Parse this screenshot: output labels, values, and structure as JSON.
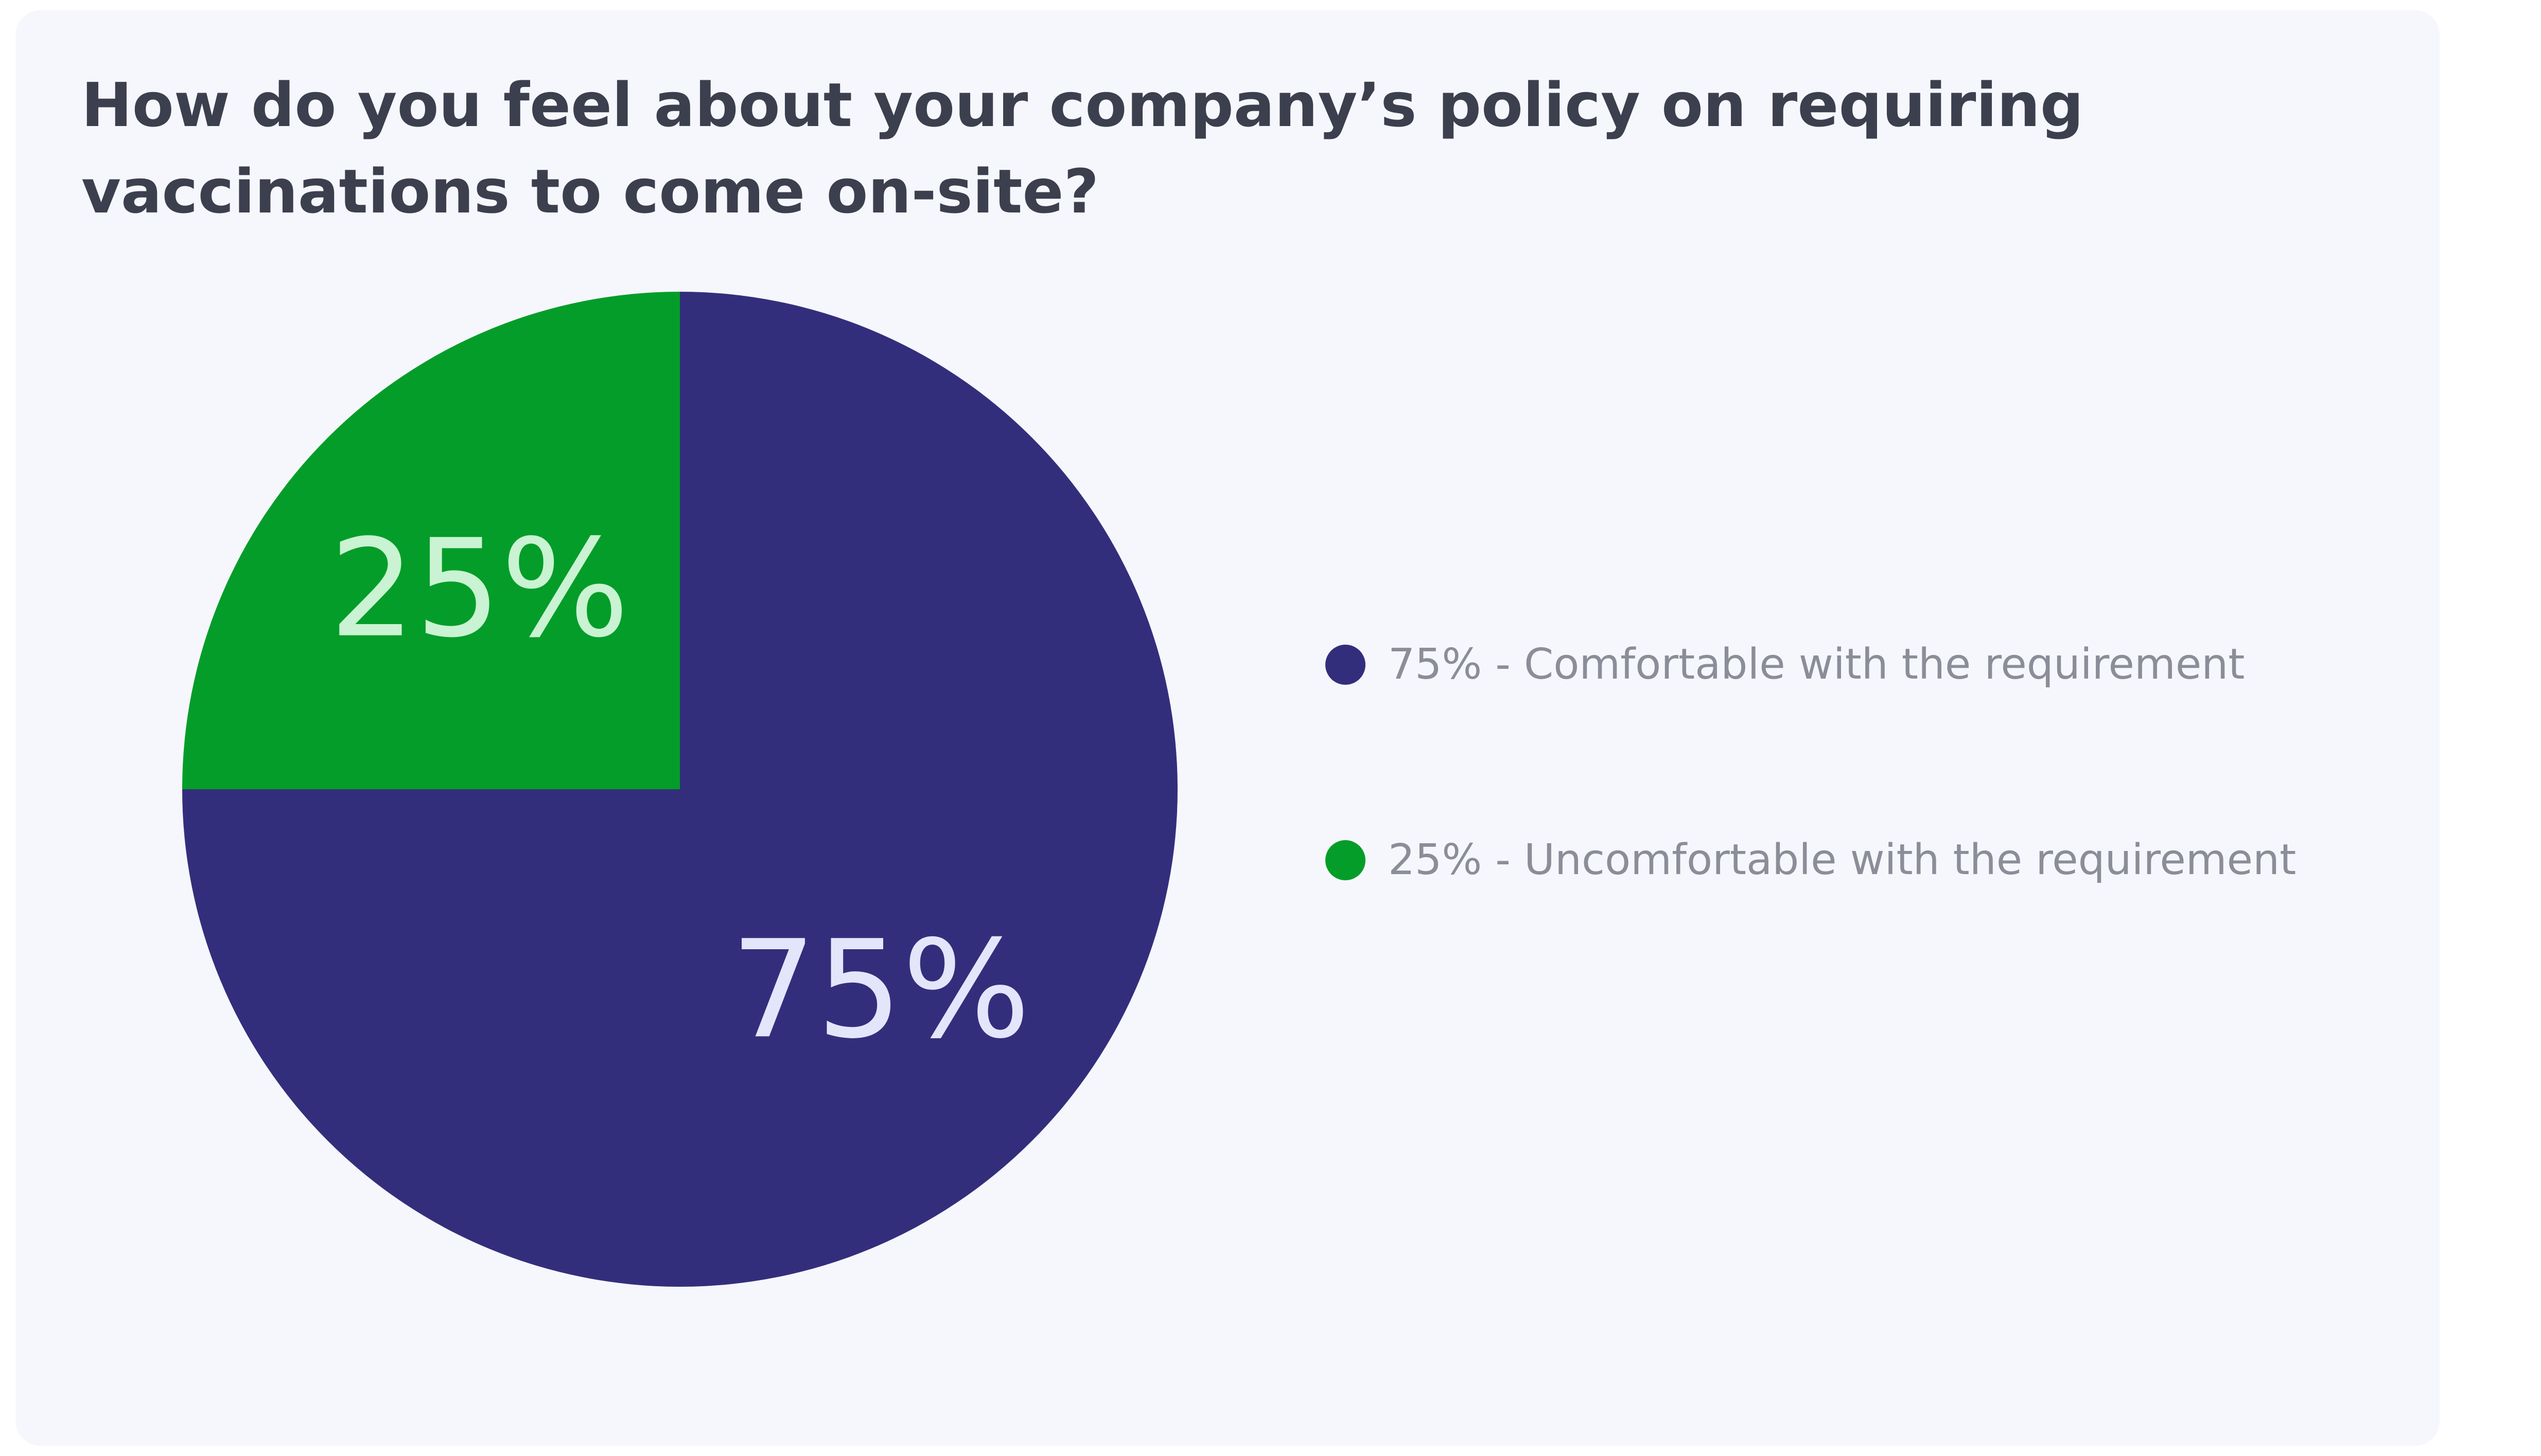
{
  "chart_data": {
    "type": "pie",
    "title": "How do you feel about your company’s policy on requiring vaccinations to come on-site?",
    "slices": [
      {
        "label": "75% - Comfortable with the requirement",
        "value": 75,
        "value_label": "75%",
        "color": "#332e7c",
        "label_color": "#e3e6fa"
      },
      {
        "label": "25% - Uncomfortable with the requirement",
        "value": 25,
        "value_label": "25%",
        "color": "#049d29",
        "label_color": "#c9f3d2"
      }
    ],
    "start_angle_deg": 0,
    "direction": "clockwise",
    "legend_position": "right"
  }
}
